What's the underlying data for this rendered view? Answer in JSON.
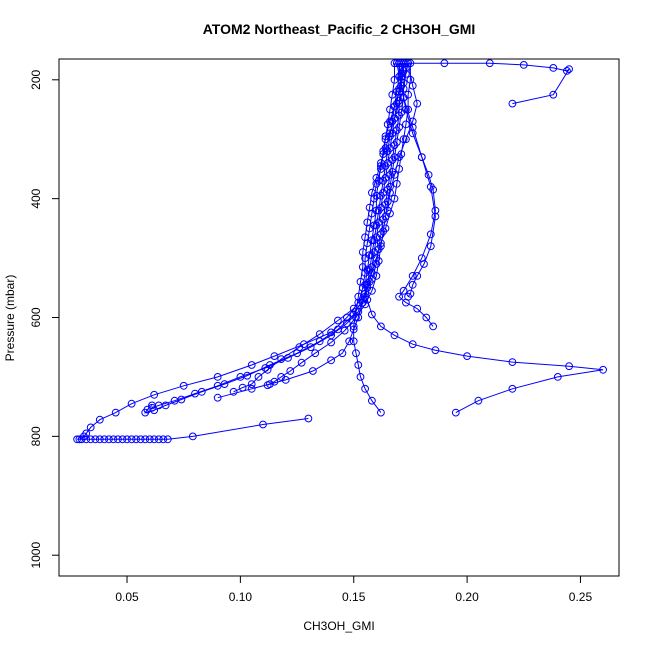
{
  "chart_data": {
    "type": "scatter",
    "title": "ATOM2 Northeast_Pacific_2 CH3OH_GMI",
    "xlabel": "CH3OH_GMI",
    "ylabel": "Pressure (mbar)",
    "xlim": [
      0.02,
      0.267
    ],
    "ylim": [
      1035,
      165
    ],
    "y_inverted": true,
    "grid": false,
    "legend": "none",
    "x_ticks": [
      0.05,
      0.1,
      0.15,
      0.2,
      0.25
    ],
    "x_tick_labels": [
      "0.05",
      "0.10",
      "0.15",
      "0.20",
      "0.25"
    ],
    "y_ticks": [
      200,
      400,
      600,
      800,
      1000
    ],
    "y_tick_labels": [
      "200",
      "400",
      "600",
      "800",
      "1000"
    ],
    "series_color": "#0000ff",
    "profiles": [
      {
        "x": [
          0.168,
          0.168,
          0.167,
          0.166,
          0.165,
          0.164,
          0.163,
          0.162,
          0.16,
          0.159,
          0.158,
          0.157,
          0.156,
          0.155,
          0.155,
          0.154,
          0.152,
          0.147,
          0.14,
          0.128,
          0.115,
          0.105,
          0.09,
          0.075,
          0.062,
          0.052,
          0.045,
          0.038,
          0.034,
          0.032,
          0.031,
          0.029,
          0.028,
          0.03,
          0.032,
          0.034,
          0.036,
          0.038,
          0.04,
          0.042,
          0.044,
          0.046,
          0.048,
          0.05,
          0.052,
          0.054,
          0.056,
          0.058,
          0.06,
          0.062,
          0.064,
          0.066,
          0.068,
          0.079,
          0.11,
          0.13
        ],
        "y": [
          172,
          200,
          225,
          250,
          275,
          300,
          325,
          350,
          375,
          400,
          425,
          450,
          475,
          500,
          525,
          550,
          575,
          600,
          625,
          645,
          665,
          680,
          700,
          715,
          730,
          745,
          760,
          772,
          785,
          795,
          800,
          805,
          805,
          805,
          805,
          805,
          805,
          805,
          805,
          805,
          805,
          805,
          805,
          805,
          805,
          805,
          805,
          805,
          805,
          805,
          805,
          805,
          805,
          800,
          780,
          770
        ]
      },
      {
        "x": [
          0.17,
          0.17,
          0.169,
          0.168,
          0.167,
          0.166,
          0.165,
          0.164,
          0.163,
          0.162,
          0.161,
          0.16,
          0.159,
          0.158,
          0.157,
          0.156,
          0.154,
          0.15,
          0.143,
          0.135,
          0.125,
          0.113,
          0.103,
          0.093,
          0.083,
          0.074,
          0.067,
          0.062,
          0.058,
          0.059,
          0.061
        ],
        "y": [
          172,
          195,
          220,
          245,
          270,
          295,
          320,
          345,
          370,
          395,
          420,
          445,
          470,
          495,
          520,
          545,
          570,
          595,
          620,
          640,
          660,
          680,
          698,
          712,
          725,
          738,
          748,
          756,
          760,
          755,
          748
        ]
      },
      {
        "x": [
          0.171,
          0.171,
          0.17,
          0.169,
          0.168,
          0.167,
          0.166,
          0.165,
          0.164,
          0.163,
          0.162,
          0.161,
          0.16,
          0.159,
          0.158,
          0.157,
          0.155,
          0.152,
          0.147,
          0.14,
          0.131,
          0.121,
          0.111,
          0.1,
          0.09,
          0.08,
          0.071,
          0.064,
          0.061
        ],
        "y": [
          172,
          190,
          215,
          240,
          265,
          290,
          315,
          340,
          365,
          390,
          415,
          440,
          465,
          490,
          515,
          540,
          565,
          590,
          610,
          630,
          650,
          668,
          685,
          700,
          715,
          728,
          740,
          748,
          752
        ]
      },
      {
        "x": [
          0.172,
          0.172,
          0.171,
          0.17,
          0.17,
          0.169,
          0.168,
          0.167,
          0.166,
          0.165,
          0.164,
          0.163,
          0.162,
          0.161,
          0.16,
          0.158,
          0.155,
          0.15,
          0.143,
          0.135,
          0.126,
          0.118,
          0.112,
          0.108,
          0.105,
          0.101,
          0.097
        ],
        "y": [
          172,
          185,
          210,
          235,
          260,
          285,
          310,
          335,
          360,
          385,
          410,
          435,
          460,
          485,
          510,
          535,
          560,
          585,
          605,
          628,
          650,
          670,
          688,
          700,
          712,
          718,
          725
        ]
      },
      {
        "x": [
          0.173,
          0.173,
          0.172,
          0.172,
          0.171,
          0.17,
          0.169,
          0.168,
          0.167,
          0.166,
          0.165,
          0.164,
          0.163,
          0.162,
          0.161,
          0.16,
          0.158,
          0.155,
          0.151,
          0.146,
          0.14,
          0.133,
          0.127,
          0.122,
          0.118,
          0.115,
          0.113,
          0.112
        ],
        "y": [
          172,
          180,
          205,
          230,
          255,
          280,
          305,
          330,
          355,
          380,
          405,
          430,
          455,
          480,
          505,
          530,
          555,
          578,
          600,
          622,
          642,
          660,
          676,
          690,
          700,
          708,
          712,
          714
        ]
      },
      {
        "x": [
          0.175,
          0.175,
          0.174,
          0.174,
          0.173,
          0.172,
          0.171,
          0.17,
          0.169,
          0.168,
          0.166,
          0.164,
          0.162,
          0.16,
          0.158,
          0.156,
          0.154,
          0.152,
          0.15,
          0.148,
          0.145,
          0.14,
          0.132,
          0.12,
          0.105,
          0.09
        ],
        "y": [
          172,
          200,
          225,
          250,
          275,
          300,
          325,
          350,
          375,
          400,
          425,
          450,
          475,
          500,
          525,
          550,
          575,
          600,
          620,
          640,
          660,
          672,
          690,
          705,
          720,
          735
        ]
      },
      {
        "x": [
          0.174,
          0.173,
          0.172,
          0.17,
          0.168,
          0.166,
          0.164,
          0.162,
          0.16,
          0.158,
          0.157,
          0.156,
          0.155,
          0.154,
          0.154,
          0.153,
          0.152,
          0.151,
          0.15,
          0.15,
          0.151,
          0.152,
          0.153,
          0.155,
          0.158,
          0.162
        ],
        "y": [
          172,
          190,
          215,
          240,
          265,
          290,
          315,
          340,
          365,
          390,
          415,
          440,
          465,
          490,
          515,
          540,
          565,
          590,
          615,
          640,
          660,
          680,
          700,
          720,
          740,
          760
        ]
      },
      {
        "x": [
          0.172,
          0.171,
          0.17,
          0.168,
          0.166,
          0.164,
          0.163,
          0.162,
          0.161,
          0.16,
          0.16,
          0.159,
          0.158,
          0.157,
          0.156,
          0.155,
          0.156,
          0.158,
          0.162,
          0.168,
          0.176,
          0.186,
          0.2,
          0.22,
          0.245,
          0.26,
          0.24,
          0.22,
          0.205,
          0.195
        ],
        "y": [
          172,
          195,
          220,
          245,
          270,
          295,
          320,
          345,
          370,
          395,
          420,
          445,
          470,
          495,
          520,
          545,
          570,
          595,
          615,
          630,
          645,
          655,
          665,
          675,
          682,
          688,
          700,
          720,
          740,
          760
        ]
      },
      {
        "x": [
          0.17,
          0.171,
          0.173,
          0.176,
          0.18,
          0.183,
          0.185,
          0.186,
          0.184,
          0.18,
          0.176,
          0.172,
          0.17,
          0.173,
          0.178,
          0.182,
          0.185
        ],
        "y": [
          172,
          210,
          250,
          290,
          330,
          360,
          385,
          420,
          460,
          500,
          530,
          555,
          565,
          575,
          585,
          600,
          615
        ]
      },
      {
        "x": [
          0.169,
          0.172,
          0.176,
          0.18,
          0.184,
          0.186,
          0.184,
          0.181,
          0.178,
          0.176,
          0.175,
          0.174
        ],
        "y": [
          172,
          230,
          280,
          330,
          380,
          430,
          480,
          510,
          530,
          545,
          560,
          565
        ]
      },
      {
        "x": [
          0.17,
          0.19,
          0.21,
          0.225,
          0.238,
          0.244,
          0.245,
          0.238,
          0.22
        ],
        "y": [
          172,
          172,
          172,
          175,
          180,
          185,
          182,
          225,
          240
        ]
      },
      {
        "x": [
          0.174,
          0.176,
          0.178,
          0.176,
          0.173,
          0.17,
          0.168,
          0.166,
          0.165
        ],
        "y": [
          172,
          210,
          240,
          270,
          300,
          330,
          360,
          390,
          420
        ]
      }
    ]
  }
}
